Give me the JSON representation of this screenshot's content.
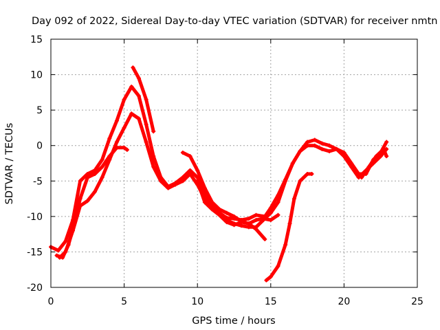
{
  "chart_data": {
    "type": "scatter",
    "title": "Day 092 of 2022, Sidereal Day-to-day VTEC variation (SDTVAR) for receiver nmtn",
    "xlabel": "GPS time / hours",
    "ylabel": "SDTVAR / TECUs",
    "xlim": [
      0,
      25
    ],
    "ylim": [
      -20,
      15
    ],
    "x_ticks": [
      0,
      5,
      10,
      15,
      20,
      25
    ],
    "y_ticks": [
      -20,
      -15,
      -10,
      -5,
      0,
      5,
      10,
      15
    ],
    "grid": true,
    "marker_color": "#ff0000",
    "series": [
      {
        "name": "track-1",
        "points": [
          [
            0,
            -14.3
          ],
          [
            0.5,
            -14.8
          ],
          [
            1,
            -13.5
          ],
          [
            1.5,
            -10.5
          ],
          [
            2,
            -5
          ],
          [
            2.5,
            -4
          ],
          [
            3,
            -3.5
          ],
          [
            3.5,
            -2
          ],
          [
            4,
            1
          ],
          [
            4.5,
            3.5
          ],
          [
            5,
            6.5
          ],
          [
            5.5,
            8.3
          ],
          [
            6,
            7
          ],
          [
            6.5,
            3
          ],
          [
            7,
            -1.5
          ],
          [
            7.5,
            -4.5
          ],
          [
            8,
            -5.8
          ],
          [
            8.5,
            -5.3
          ],
          [
            9,
            -4.5
          ],
          [
            9.5,
            -3.5
          ],
          [
            10,
            -4.5
          ],
          [
            10.5,
            -7
          ],
          [
            11,
            -8.5
          ],
          [
            11.5,
            -9.5
          ],
          [
            12,
            -10.5
          ],
          [
            12.5,
            -11
          ],
          [
            13,
            -11.3
          ],
          [
            13.5,
            -11.5
          ],
          [
            14,
            -11.5
          ],
          [
            14.5,
            -10.5
          ],
          [
            15,
            -9.5
          ],
          [
            15.5,
            -8
          ],
          [
            16,
            -5
          ],
          [
            16.5,
            -2.5
          ],
          [
            17,
            -0.8
          ],
          [
            17.5,
            0
          ],
          [
            18,
            0
          ],
          [
            18.5,
            -0.5
          ],
          [
            19,
            -0.8
          ],
          [
            19.5,
            -0.5
          ],
          [
            20,
            -1
          ],
          [
            20.5,
            -2.5
          ],
          [
            21,
            -4
          ],
          [
            21.5,
            -4
          ],
          [
            22,
            -2
          ],
          [
            22.5,
            -1
          ],
          [
            22.9,
            0.5
          ]
        ]
      },
      {
        "name": "track-2",
        "points": [
          [
            0.6,
            -15.8
          ],
          [
            1,
            -15
          ],
          [
            1.5,
            -12
          ],
          [
            2,
            -8.5
          ],
          [
            2.5,
            -7.8
          ],
          [
            3,
            -6.5
          ],
          [
            3.5,
            -4.5
          ],
          [
            4,
            -2
          ],
          [
            4.5,
            0.5
          ],
          [
            5,
            2.5
          ],
          [
            5.5,
            4.5
          ],
          [
            6,
            3.8
          ],
          [
            6.5,
            0.5
          ],
          [
            7,
            -3
          ],
          [
            7.5,
            -5
          ],
          [
            8,
            -6
          ],
          [
            8.5,
            -5.5
          ],
          [
            9,
            -5
          ],
          [
            9.5,
            -4
          ],
          [
            10,
            -5.5
          ],
          [
            10.5,
            -7.5
          ],
          [
            11,
            -8.5
          ],
          [
            11.5,
            -9.5
          ],
          [
            12,
            -10.2
          ],
          [
            12.5,
            -10.3
          ],
          [
            13,
            -10.5
          ],
          [
            13.5,
            -10.3
          ],
          [
            14,
            -9.8
          ],
          [
            14.6,
            -10
          ],
          [
            15,
            -8.8
          ],
          [
            15.5,
            -7
          ],
          [
            16,
            -4.8
          ],
          [
            16.5,
            -2.5
          ],
          [
            17,
            -0.8
          ],
          [
            17.5,
            0.5
          ],
          [
            18,
            0.8
          ],
          [
            18.5,
            0.3
          ],
          [
            19,
            0
          ],
          [
            19.5,
            -0.5
          ],
          [
            20,
            -1.5
          ],
          [
            20.5,
            -3
          ],
          [
            21,
            -4.5
          ],
          [
            21.5,
            -3.5
          ],
          [
            22,
            -2.5
          ],
          [
            22.5,
            -1.5
          ],
          [
            22.9,
            -0.5
          ]
        ]
      },
      {
        "name": "track-3",
        "points": [
          [
            0.4,
            -15.5
          ],
          [
            0.8,
            -15.8
          ],
          [
            1.2,
            -14
          ],
          [
            1.6,
            -11
          ],
          [
            2,
            -7.5
          ],
          [
            2.5,
            -4.5
          ],
          [
            3,
            -4
          ],
          [
            3.5,
            -3
          ],
          [
            4,
            -1.5
          ],
          [
            4.5,
            -0.3
          ],
          [
            5,
            -0.3
          ],
          [
            5.2,
            -0.6
          ]
        ]
      },
      {
        "name": "track-4",
        "points": [
          [
            5.6,
            11
          ],
          [
            6,
            9.5
          ],
          [
            6.5,
            6.5
          ],
          [
            7,
            2
          ]
        ]
      },
      {
        "name": "track-5",
        "points": [
          [
            9,
            -1
          ],
          [
            9.5,
            -1.5
          ],
          [
            10,
            -3.5
          ],
          [
            10.5,
            -6
          ],
          [
            11,
            -8
          ],
          [
            11.5,
            -9
          ],
          [
            12,
            -9.5
          ],
          [
            12.5,
            -10
          ],
          [
            13,
            -10.7
          ],
          [
            13.5,
            -11
          ],
          [
            14,
            -10.5
          ],
          [
            14.5,
            -10.3
          ],
          [
            15,
            -10.5
          ],
          [
            15.5,
            -9.8
          ]
        ]
      },
      {
        "name": "track-6",
        "points": [
          [
            14.7,
            -19
          ],
          [
            15,
            -18.5
          ],
          [
            15.5,
            -17
          ],
          [
            16,
            -14
          ],
          [
            16.3,
            -11
          ],
          [
            16.6,
            -7.5
          ],
          [
            17,
            -5
          ],
          [
            17.5,
            -4
          ],
          [
            17.8,
            -4
          ]
        ]
      },
      {
        "name": "track-7",
        "points": [
          [
            10,
            -5
          ],
          [
            10.5,
            -8
          ],
          [
            11,
            -9
          ],
          [
            11.5,
            -9.8
          ],
          [
            12,
            -10.8
          ],
          [
            12.5,
            -11.2
          ],
          [
            13,
            -10.8
          ],
          [
            13.5,
            -11
          ],
          [
            14,
            -11.8
          ],
          [
            14.6,
            -13.2
          ]
        ]
      },
      {
        "name": "track-8",
        "points": [
          [
            21.2,
            -4.5
          ],
          [
            21.7,
            -3
          ],
          [
            22.2,
            -1.5
          ],
          [
            22.7,
            -0.5
          ],
          [
            22.9,
            -1.5
          ]
        ]
      }
    ]
  }
}
